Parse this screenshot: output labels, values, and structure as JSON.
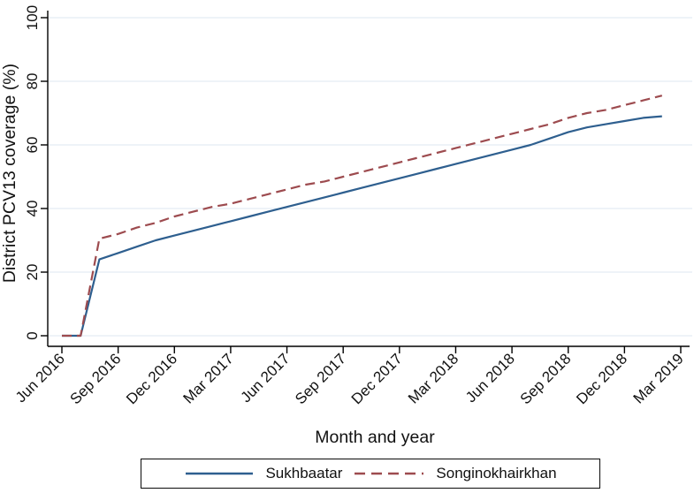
{
  "figure": {
    "background": "#ffffff",
    "y_axis_title": "District PCV13 coverage (%)",
    "x_axis_title": "Month and year",
    "axis_color": "#000000",
    "grid_color": "#dde7f0"
  },
  "legend": {
    "position": "bottom-center-boxed",
    "items": [
      {
        "label": "Sukhbaatar",
        "color": "#2e5f8f",
        "dash": "solid"
      },
      {
        "label": "Songinokhairkhan",
        "color": "#9d4b4f",
        "dash": "dashed"
      }
    ]
  },
  "chart_data": {
    "type": "line",
    "title": "",
    "xlabel": "Month and year",
    "ylabel": "District PCV13 coverage (%)",
    "ylim": [
      0,
      100
    ],
    "yticks": [
      0,
      20,
      40,
      60,
      80,
      100
    ],
    "grid": "horizontal",
    "grid_color": "#dde7f0",
    "legend_position": "bottom-center-boxed",
    "x_tick_labels": [
      "Jun 2016",
      "Sep 2016",
      "Dec 2016",
      "Mar 2017",
      "Jun 2017",
      "Sep 2017",
      "Dec 2017",
      "Mar 2018",
      "Jun 2018",
      "Sep 2018",
      "Dec 2018",
      "Mar 2019"
    ],
    "x_tick_month_index": [
      0,
      3,
      6,
      9,
      12,
      15,
      18,
      21,
      24,
      27,
      30,
      33
    ],
    "x_months": [
      "Jun 2016",
      "Jul 2016",
      "Aug 2016",
      "Sep 2016",
      "Oct 2016",
      "Nov 2016",
      "Dec 2016",
      "Jan 2017",
      "Feb 2017",
      "Mar 2017",
      "Apr 2017",
      "May 2017",
      "Jun 2017",
      "Jul 2017",
      "Aug 2017",
      "Sep 2017",
      "Oct 2017",
      "Nov 2017",
      "Dec 2017",
      "Jan 2018",
      "Feb 2018",
      "Mar 2018",
      "Apr 2018",
      "May 2018",
      "Jun 2018",
      "Jul 2018",
      "Aug 2018",
      "Sep 2018",
      "Oct 2018",
      "Nov 2018",
      "Dec 2018",
      "Jan 2019",
      "Feb 2019"
    ],
    "series": [
      {
        "name": "Sukhbaatar",
        "color": "#2e5f8f",
        "style": "solid",
        "values": [
          0,
          0,
          24,
          26,
          28,
          30,
          31.5,
          33,
          34.5,
          36,
          37.5,
          39,
          40.5,
          42,
          43.5,
          45,
          46.5,
          48,
          49.5,
          51,
          52.5,
          54,
          55.5,
          57,
          58.5,
          60,
          62,
          64,
          65.5,
          66.5,
          67.5,
          68.5,
          69
        ]
      },
      {
        "name": "Songinokhairkhan",
        "color": "#9d4b4f",
        "style": "dashed",
        "values": [
          0,
          0,
          30.5,
          32,
          34,
          35.5,
          37.5,
          39,
          40.5,
          41.5,
          43,
          44.5,
          46,
          47.5,
          48.5,
          50,
          51.5,
          53,
          54.5,
          56,
          57.5,
          59,
          60.5,
          62,
          63.5,
          65,
          66.5,
          68.5,
          70,
          71,
          72.5,
          74,
          75.5
        ]
      }
    ]
  }
}
